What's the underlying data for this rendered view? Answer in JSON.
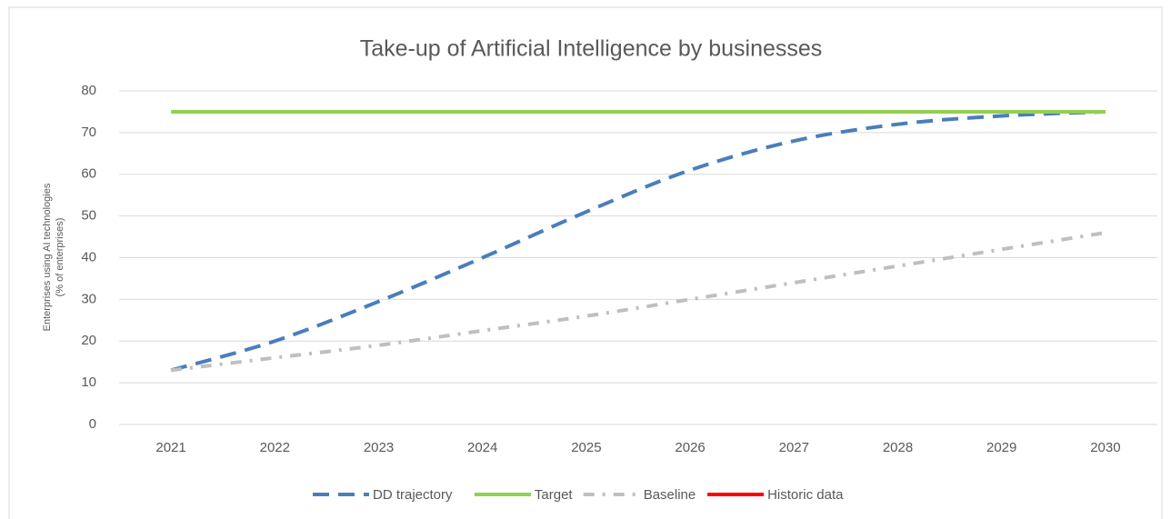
{
  "chart_data": {
    "type": "line",
    "title": "Take-up of Artificial Intelligence by businesses",
    "y_label": [
      "Enterprises using AI technologies",
      "(% of enterprises)"
    ],
    "categories": [
      "2021",
      "2022",
      "2023",
      "2024",
      "2025",
      "2026",
      "2027",
      "2028",
      "2029",
      "2030"
    ],
    "series": [
      {
        "name": "DD trajectory",
        "color": "#4a7ebb",
        "dash": "long-dash",
        "values": [
          13,
          20,
          29.5,
          40,
          51,
          61,
          68,
          72,
          74,
          75
        ]
      },
      {
        "name": "Target",
        "color": "#92d050",
        "dash": "solid",
        "values": [
          75,
          75,
          75,
          75,
          75,
          75,
          75,
          75,
          75,
          75
        ]
      },
      {
        "name": "Baseline",
        "color": "#bfbfbf",
        "dash": "dash-dot",
        "values": [
          13,
          16,
          19,
          22.5,
          26,
          30,
          34,
          38,
          42,
          46
        ]
      },
      {
        "name": "Historic data",
        "color": "#ff0000",
        "dash": "solid",
        "values": [
          null,
          null,
          null,
          null,
          null,
          null,
          null,
          null,
          null,
          null
        ]
      }
    ],
    "ylim": [
      0,
      80
    ],
    "yticks": [
      0,
      10,
      20,
      30,
      40,
      50,
      60,
      70,
      80
    ],
    "grid": true,
    "legend": "bottom"
  }
}
